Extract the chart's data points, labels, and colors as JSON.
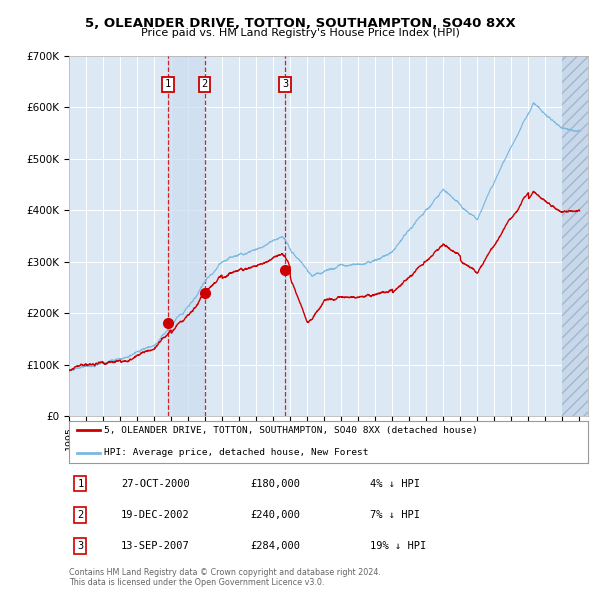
{
  "title": "5, OLEANDER DRIVE, TOTTON, SOUTHAMPTON, SO40 8XX",
  "subtitle": "Price paid vs. HM Land Registry's House Price Index (HPI)",
  "background_color": "#ffffff",
  "plot_bg_color": "#dce9f5",
  "grid_color": "#ffffff",
  "hpi_line_color": "#7ab8e0",
  "price_line_color": "#cc0000",
  "ylim": [
    0,
    700000
  ],
  "yticks": [
    0,
    100000,
    200000,
    300000,
    400000,
    500000,
    600000,
    700000
  ],
  "ytick_labels": [
    "£0",
    "£100K",
    "£200K",
    "£300K",
    "£400K",
    "£500K",
    "£600K",
    "£700K"
  ],
  "transactions": [
    {
      "num": 1,
      "date": "27-OCT-2000",
      "price": 180000,
      "hpi_pct": "4%",
      "direction": "↓",
      "x_year": 2000.83
    },
    {
      "num": 2,
      "date": "19-DEC-2002",
      "price": 240000,
      "hpi_pct": "7%",
      "direction": "↓",
      "x_year": 2002.97
    },
    {
      "num": 3,
      "date": "13-SEP-2007",
      "price": 284000,
      "hpi_pct": "19%",
      "direction": "↓",
      "x_year": 2007.7
    }
  ],
  "legend_property_label": "5, OLEANDER DRIVE, TOTTON, SOUTHAMPTON, SO40 8XX (detached house)",
  "legend_hpi_label": "HPI: Average price, detached house, New Forest",
  "footnote": "Contains HM Land Registry data © Crown copyright and database right 2024.\nThis data is licensed under the Open Government Licence v3.0.",
  "xlim_start": 1995.0,
  "xlim_end": 2025.5,
  "xtick_years": [
    1995,
    1996,
    1997,
    1998,
    1999,
    2000,
    2001,
    2002,
    2003,
    2004,
    2005,
    2006,
    2007,
    2008,
    2009,
    2010,
    2011,
    2012,
    2013,
    2014,
    2015,
    2016,
    2017,
    2018,
    2019,
    2020,
    2021,
    2022,
    2023,
    2024,
    2025
  ]
}
